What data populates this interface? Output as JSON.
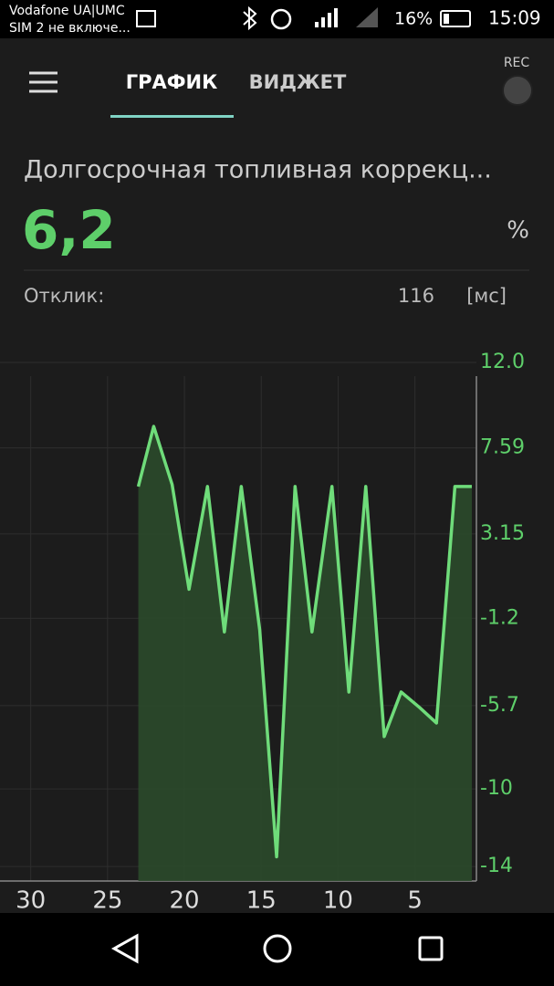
{
  "status_bar": {
    "carrier": "Vodafone UA|UMC",
    "sim2": "SIM 2 не включе...",
    "battery": "16%",
    "time": "15:09"
  },
  "tabs": [
    "ГРАФИК",
    "ВИДЖЕТ"
  ],
  "rec": "REC",
  "sensor": {
    "name": "Долгосрочная топливная коррекц...",
    "value": "6,2",
    "unit": "%",
    "response_label": "Отклик:",
    "response_value": "116",
    "response_unit": "[мс]"
  },
  "chart_data": {
    "type": "line",
    "x": [
      23.0,
      22.0,
      20.8,
      19.7,
      18.5,
      17.4,
      16.3,
      15.1,
      14.0,
      12.8,
      11.7,
      10.4,
      9.3,
      8.2,
      7.0,
      5.9,
      4.7,
      3.6,
      2.4,
      1.3
    ],
    "series": [
      {
        "color": "#6fdc7a",
        "values": [
          5.6,
          8.7,
          5.7,
          0.3,
          5.6,
          -1.9,
          5.6,
          -1.8,
          -13.5,
          5.6,
          -1.9,
          5.6,
          -5.0,
          5.6,
          -7.3,
          -5.0,
          -5.8,
          -6.6,
          5.6,
          5.6
        ]
      }
    ],
    "xlim": [
      32,
      1
    ],
    "xticks": [
      30,
      25,
      20,
      15,
      10,
      5
    ],
    "ylim": [
      -14.75,
      12
    ],
    "yticks": [
      {
        "value": 12,
        "label": "12.0"
      },
      7.59,
      3.15,
      -1.2,
      -5.7,
      -10,
      -14
    ],
    "grid": true
  }
}
